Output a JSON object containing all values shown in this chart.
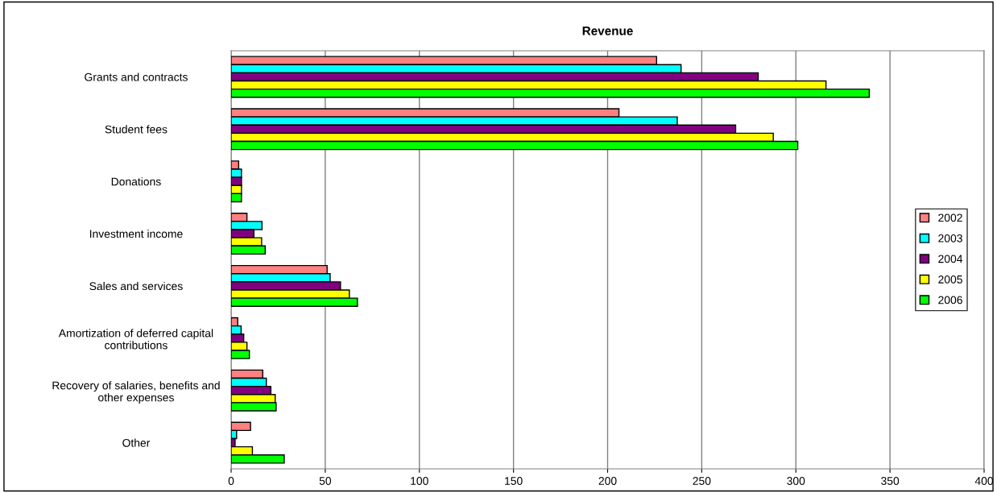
{
  "chart_data": {
    "type": "bar",
    "orientation": "horizontal",
    "title": "Revenue",
    "categories": [
      "Grants and contracts",
      "Student fees",
      "Donations",
      "Investment income",
      "Sales and services",
      "Amortization of deferred capital\ncontributions",
      "Recovery of salaries, benefits and\nother expenses",
      "Other"
    ],
    "series": [
      {
        "name": "2002",
        "color": "#ff8080",
        "values": [
          226,
          206,
          4,
          8.4,
          51,
          3.5,
          16.8,
          10.3
        ]
      },
      {
        "name": "2003",
        "color": "#00ffff",
        "values": [
          239,
          237,
          5.5,
          16.4,
          52.6,
          5.3,
          18.7,
          2.9
        ]
      },
      {
        "name": "2004",
        "color": "#800080",
        "values": [
          280,
          268,
          5.5,
          12.1,
          58.1,
          6.7,
          21.1,
          2.1
        ]
      },
      {
        "name": "2005",
        "color": "#ffff00",
        "values": [
          316,
          288,
          5.5,
          16.2,
          62.8,
          8.4,
          23.4,
          11.3
        ]
      },
      {
        "name": "2006",
        "color": "#00ff00",
        "values": [
          339,
          301,
          5.5,
          18.1,
          67.1,
          9.7,
          23.9,
          28.2
        ]
      }
    ],
    "xlim": [
      0,
      400
    ],
    "xticks": [
      0,
      50,
      100,
      150,
      200,
      250,
      300,
      350,
      400
    ],
    "grid": "x",
    "legend": "right"
  }
}
